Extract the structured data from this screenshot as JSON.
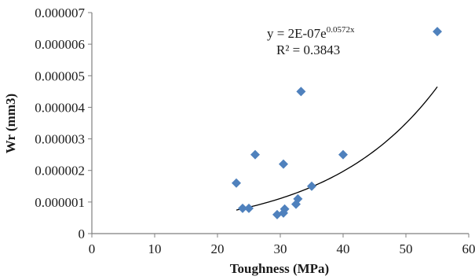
{
  "chart_data": {
    "type": "scatter",
    "xlabel": "Toughness (MPa)",
    "ylabel": "Wr (mm3)",
    "xlim": [
      0,
      60
    ],
    "ylim": [
      0,
      7e-06
    ],
    "x_ticks": [
      "0",
      "10",
      "20",
      "30",
      "40",
      "50",
      "60"
    ],
    "y_ticks": [
      "0",
      "0.000001",
      "0.000002",
      "0.000003",
      "0.000004",
      "0.000005",
      "0.000006",
      "0.000007"
    ],
    "grid": false,
    "series": [
      {
        "marker": "diamond",
        "points": [
          {
            "x": 23.0,
            "y": 1.6e-06
          },
          {
            "x": 24.0,
            "y": 8e-07
          },
          {
            "x": 25.0,
            "y": 8e-07
          },
          {
            "x": 26.0,
            "y": 2.5e-06
          },
          {
            "x": 29.5,
            "y": 6e-07
          },
          {
            "x": 30.5,
            "y": 6.5e-07
          },
          {
            "x": 30.7,
            "y": 7.8e-07
          },
          {
            "x": 30.5,
            "y": 2.2e-06
          },
          {
            "x": 32.5,
            "y": 9.3e-07
          },
          {
            "x": 32.8,
            "y": 1.1e-06
          },
          {
            "x": 33.3,
            "y": 4.5e-06
          },
          {
            "x": 35.0,
            "y": 1.5e-06
          },
          {
            "x": 40.0,
            "y": 2.5e-06
          },
          {
            "x": 55.0,
            "y": 6.4e-06
          }
        ]
      }
    ],
    "trendline": {
      "type": "exponential",
      "a": 2e-07,
      "b": 0.0572,
      "x_range": [
        23,
        55
      ],
      "equation_prefix": "y = 2E-07e",
      "equation_exponent": "0.0572x",
      "r_squared_label": "R² = 0.3843"
    },
    "colors": {
      "marker": "#4F81BD",
      "trendline": "#000000",
      "axis": "#7f7f7f",
      "text": "#1a1a1a"
    }
  }
}
